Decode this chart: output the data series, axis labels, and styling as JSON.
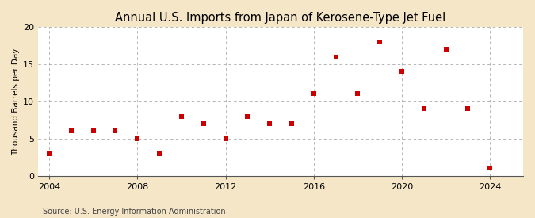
{
  "title": "Annual U.S. Imports from Japan of Kerosene-Type Jet Fuel",
  "ylabel": "Thousand Barrels per Day",
  "source": "Source: U.S. Energy Information Administration",
  "years": [
    2004,
    2005,
    2006,
    2007,
    2008,
    2009,
    2010,
    2011,
    2012,
    2013,
    2014,
    2015,
    2016,
    2017,
    2018,
    2019,
    2020,
    2021,
    2022,
    2023,
    2024
  ],
  "values": [
    3,
    6,
    6,
    6,
    5,
    3,
    8,
    7,
    5,
    8,
    7,
    7,
    11,
    16,
    11,
    18,
    14,
    9,
    17,
    9,
    1
  ],
  "marker_color": "#cc0000",
  "marker": "s",
  "marker_size": 4,
  "fig_bg_color": "#f5e6c8",
  "plot_bg_color": "#ffffff",
  "grid_color": "#aaaaaa",
  "xlim": [
    2003.5,
    2025.5
  ],
  "ylim": [
    0,
    20
  ],
  "xticks": [
    2004,
    2008,
    2012,
    2016,
    2020,
    2024
  ],
  "yticks": [
    0,
    5,
    10,
    15,
    20
  ],
  "title_fontsize": 10.5,
  "label_fontsize": 7.5,
  "tick_fontsize": 8,
  "source_fontsize": 7
}
